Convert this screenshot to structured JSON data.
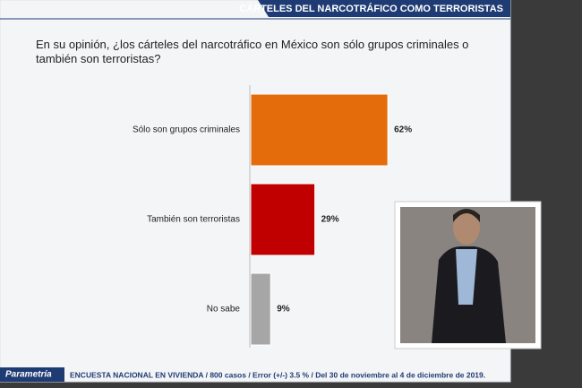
{
  "header": {
    "title": "CÁRTELES DEL NARCOTRÁFICO COMO TERRORISTAS"
  },
  "chart_data": {
    "type": "bar",
    "orientation": "horizontal",
    "title": "En su opinión, ¿los cárteles del narcotráfico en México son sólo grupos criminales o también son terroristas?",
    "categories": [
      "Sólo son grupos criminales",
      "También son terroristas",
      "No sabe"
    ],
    "values": [
      62,
      29,
      9
    ],
    "value_labels": [
      "62%",
      "29%",
      "9%"
    ],
    "colors": [
      "#e46c0a",
      "#c00000",
      "#a6a6a6"
    ]
  },
  "footer": {
    "logo": "Parametría",
    "source": "ENCUESTA NACIONAL EN VIVIENDA / 800 casos / Error (+/-) 3.5 % / Del 30 de noviembre al 4 de diciembre de 2019."
  }
}
